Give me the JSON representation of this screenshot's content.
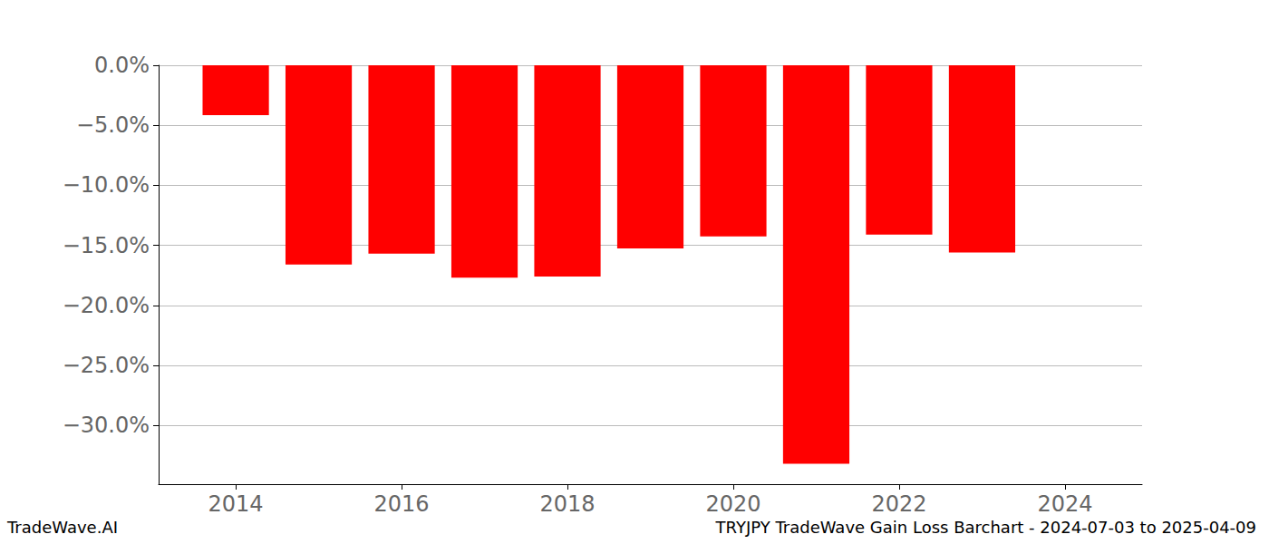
{
  "chart_data": {
    "type": "bar",
    "title": "TRYJPY TradeWave Gain Loss Barchart - 2024-07-03 to 2025-04-09",
    "annotations": [
      "TradeWave.AI"
    ],
    "x": [
      2014,
      2015,
      2016,
      2017,
      2018,
      2019,
      2020,
      2021,
      2022,
      2023
    ],
    "values": [
      -4.15,
      -16.6,
      -15.7,
      -17.7,
      -17.6,
      -15.25,
      -14.25,
      -33.2,
      -14.1,
      -15.6
    ],
    "color": "#ff0000",
    "xlim": [
      2013.07,
      2024.93
    ],
    "xticks": [
      2014,
      2016,
      2018,
      2020,
      2022,
      2024
    ],
    "ylim": [
      -34.9,
      0
    ],
    "yticks": [
      {
        "value": 0,
        "label": "0.0%"
      },
      {
        "value": -5,
        "label": "−5.0%"
      },
      {
        "value": -10,
        "label": "−10.0%"
      },
      {
        "value": -15,
        "label": "−15.0%"
      },
      {
        "value": -20,
        "label": "−20.0%"
      },
      {
        "value": -25,
        "label": "−25.0%"
      },
      {
        "value": -30,
        "label": "−30.0%"
      }
    ],
    "grid": true
  }
}
